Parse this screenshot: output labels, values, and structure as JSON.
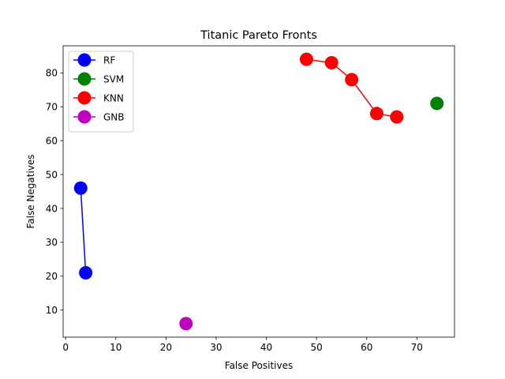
{
  "chart_data": {
    "type": "line",
    "title": "Titanic Pareto Fronts",
    "xlabel": "False Positives",
    "ylabel": "False Negatives",
    "xlim": [
      -0.5,
      77.5
    ],
    "ylim": [
      2.0,
      88.0
    ],
    "xticks": [
      0,
      10,
      20,
      30,
      40,
      50,
      60,
      70
    ],
    "yticks": [
      10,
      20,
      30,
      40,
      50,
      60,
      70,
      80
    ],
    "grid": false,
    "legend_position": "top-left",
    "series": [
      {
        "name": "RF",
        "color": "#0000ff",
        "points": [
          [
            3,
            46
          ],
          [
            4,
            21
          ]
        ]
      },
      {
        "name": "SVM",
        "color": "#008000",
        "points": [
          [
            74,
            71
          ]
        ]
      },
      {
        "name": "KNN",
        "color": "#ff0000",
        "points": [
          [
            48,
            84
          ],
          [
            53,
            83
          ],
          [
            57,
            78
          ],
          [
            62,
            68
          ],
          [
            66,
            67
          ]
        ]
      },
      {
        "name": "GNB",
        "color": "#bf00bf",
        "points": [
          [
            24,
            6
          ]
        ]
      }
    ]
  }
}
